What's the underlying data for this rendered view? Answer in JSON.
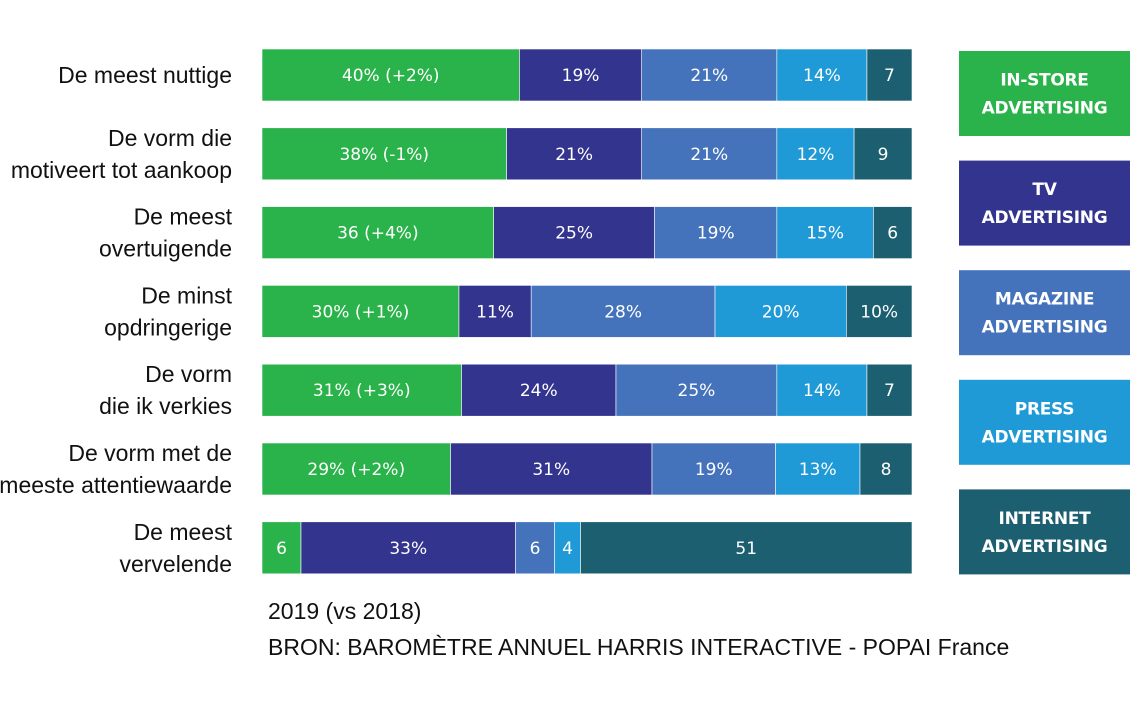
{
  "chart_data": {
    "type": "bar",
    "orientation": "horizontal",
    "stacked": true,
    "percent_scale": true,
    "categories": [
      [
        "De meest nuttige"
      ],
      [
        "De vorm die",
        "motiveert tot aankoop"
      ],
      [
        "De meest",
        "overtuigende"
      ],
      [
        "De minst",
        "opdringerige"
      ],
      [
        "De vorm",
        "die ik verkies"
      ],
      [
        "De vorm met de",
        "meeste attentiewaarde"
      ],
      [
        "De meest",
        "vervelende"
      ]
    ],
    "series": [
      {
        "name": "IN-STORE ADVERTISING",
        "legend_lines": [
          "IN-STORE",
          "ADVERTISING"
        ],
        "color": "#2bb34b",
        "values": [
          40,
          38,
          36,
          30,
          31,
          29,
          6
        ],
        "labels": [
          "40% (+2%)",
          "38% (-1%)",
          "36 (+4%)",
          "30% (+1%)",
          "31% (+3%)",
          "29% (+2%)",
          "6"
        ]
      },
      {
        "name": "TV ADVERTISING",
        "legend_lines": [
          "TV",
          "ADVERTISING"
        ],
        "color": "#33348e",
        "values": [
          19,
          21,
          25,
          11,
          24,
          31,
          33
        ],
        "labels": [
          "19%",
          "21%",
          "25%",
          "11%",
          "24%",
          "31%",
          "33%"
        ]
      },
      {
        "name": "MAGAZINE ADVERTISING",
        "legend_lines": [
          "MAGAZINE",
          "ADVERTISING"
        ],
        "color": "#4573bb",
        "values": [
          21,
          21,
          19,
          28,
          25,
          19,
          6
        ],
        "labels": [
          "21%",
          "21%",
          "19%",
          "28%",
          "25%",
          "19%",
          "6"
        ]
      },
      {
        "name": "PRESS ADVERTISING",
        "legend_lines": [
          "PRESS",
          "ADVERTISING"
        ],
        "color": "#1f9ad6",
        "values": [
          14,
          12,
          15,
          20,
          14,
          13,
          4
        ],
        "labels": [
          "14%",
          "12%",
          "15%",
          "20%",
          "14%",
          "13%",
          "4"
        ]
      },
      {
        "name": "INTERNET ADVERTISING",
        "legend_lines": [
          "INTERNET",
          "ADVERTISING"
        ],
        "color": "#1c5f70",
        "values": [
          7,
          9,
          6,
          10,
          7,
          8,
          51
        ],
        "labels": [
          "7",
          "9",
          "6",
          "10%",
          "7",
          "8",
          "51"
        ]
      }
    ],
    "legend": {
      "position": "right"
    },
    "grid": false
  },
  "notes": {
    "year": "2019 (vs 2018)",
    "source": "BRON: BAROMÈTRE ANNUEL HARRIS INTERACTIVE - POPAI France"
  }
}
